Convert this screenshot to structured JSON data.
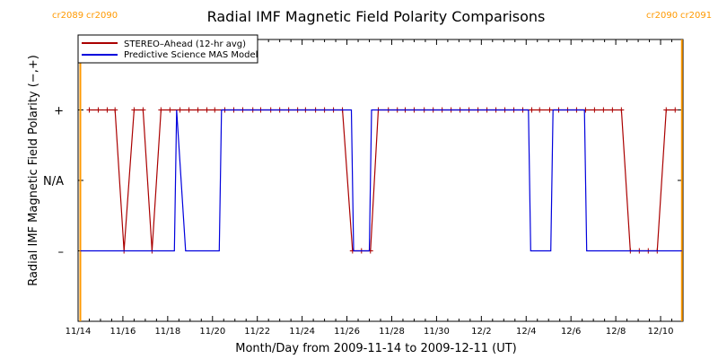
{
  "chart_data": {
    "type": "line",
    "title": "Radial IMF Magnetic Field Polarity Comparisons",
    "xlabel": "Month/Day from 2009-11-14 to 2009-12-11 (UT)",
    "ylabel": "Radial IMF Magnetic Field Polarity (−,+)",
    "xlim": [
      0.0,
      27.0
    ],
    "ylim": [
      -2,
      2
    ],
    "x_unit": "days since 2009-11-14 00:00 UT",
    "x_ticks": [
      {
        "x": 0,
        "label": "11/14"
      },
      {
        "x": 2,
        "label": "11/16"
      },
      {
        "x": 4,
        "label": "11/18"
      },
      {
        "x": 6,
        "label": "11/20"
      },
      {
        "x": 8,
        "label": "11/22"
      },
      {
        "x": 10,
        "label": "11/24"
      },
      {
        "x": 12,
        "label": "11/26"
      },
      {
        "x": 14,
        "label": "11/28"
      },
      {
        "x": 16,
        "label": "11/30"
      },
      {
        "x": 18,
        "label": "12/2"
      },
      {
        "x": 20,
        "label": "12/4"
      },
      {
        "x": 22,
        "label": "12/6"
      },
      {
        "x": 24,
        "label": "12/8"
      },
      {
        "x": 26,
        "label": "12/10"
      }
    ],
    "y_ticks": [
      {
        "y": 1,
        "label": "+"
      },
      {
        "y": 0,
        "label": "N/A"
      },
      {
        "y": -1,
        "label": "–"
      }
    ],
    "rotation_markers": {
      "left": {
        "x": 0.1,
        "label_a": "cr2089",
        "label_b": "cr2090"
      },
      "right": {
        "x": 26.95,
        "label_a": "cr2090",
        "label_b": "cr2091"
      }
    },
    "legend": {
      "position": "top-left"
    },
    "series": [
      {
        "name": "STEREO–Ahead (12-hr avg)",
        "color": "#aa0000",
        "markers": true,
        "x": [
          0.5,
          0.9,
          1.3,
          1.65,
          2.05,
          2.5,
          2.9,
          3.3,
          3.7,
          4.1,
          4.55,
          4.95,
          5.35,
          5.75,
          6.1,
          6.55,
          6.95,
          7.35,
          7.8,
          8.15,
          8.6,
          9.0,
          9.4,
          9.8,
          10.15,
          10.6,
          11.0,
          11.4,
          11.8,
          12.25,
          12.65,
          13.05,
          13.4,
          13.85,
          14.25,
          14.6,
          15.0,
          15.45,
          15.85,
          16.25,
          16.65,
          17.05,
          17.45,
          17.85,
          18.25,
          18.65,
          19.05,
          19.45,
          19.85,
          20.25,
          20.6,
          21.05,
          21.45,
          21.85,
          22.25,
          22.65,
          23.05,
          23.45,
          23.85,
          24.25,
          24.65,
          25.05,
          25.45,
          25.85,
          26.25,
          26.65
        ],
        "y": [
          1,
          1,
          1,
          1,
          -1,
          1,
          1,
          -1,
          1,
          1,
          1,
          1,
          1,
          1,
          1,
          1,
          1,
          1,
          1,
          1,
          1,
          1,
          1,
          1,
          1,
          1,
          1,
          1,
          1,
          -1,
          -1,
          -1,
          1,
          1,
          1,
          1,
          1,
          1,
          1,
          1,
          1,
          1,
          1,
          1,
          1,
          1,
          1,
          1,
          1,
          1,
          1,
          1,
          1,
          1,
          1,
          1,
          1,
          1,
          1,
          1,
          -1,
          -1,
          -1,
          -1,
          1,
          1
        ]
      },
      {
        "name": "Predictive Science MAS Model",
        "color": "#0000dd",
        "markers": false,
        "x": [
          0.1,
          4.3,
          4.4,
          4.8,
          5.2,
          6.3,
          6.4,
          12.2,
          12.3,
          13.0,
          13.1,
          20.1,
          20.2,
          21.1,
          21.2,
          22.6,
          22.7,
          26.95
        ],
        "y": [
          -1,
          -1,
          1,
          -1,
          -1,
          -1,
          1,
          1,
          -1,
          -1,
          1,
          1,
          -1,
          -1,
          1,
          1,
          -1,
          -1
        ]
      }
    ]
  }
}
